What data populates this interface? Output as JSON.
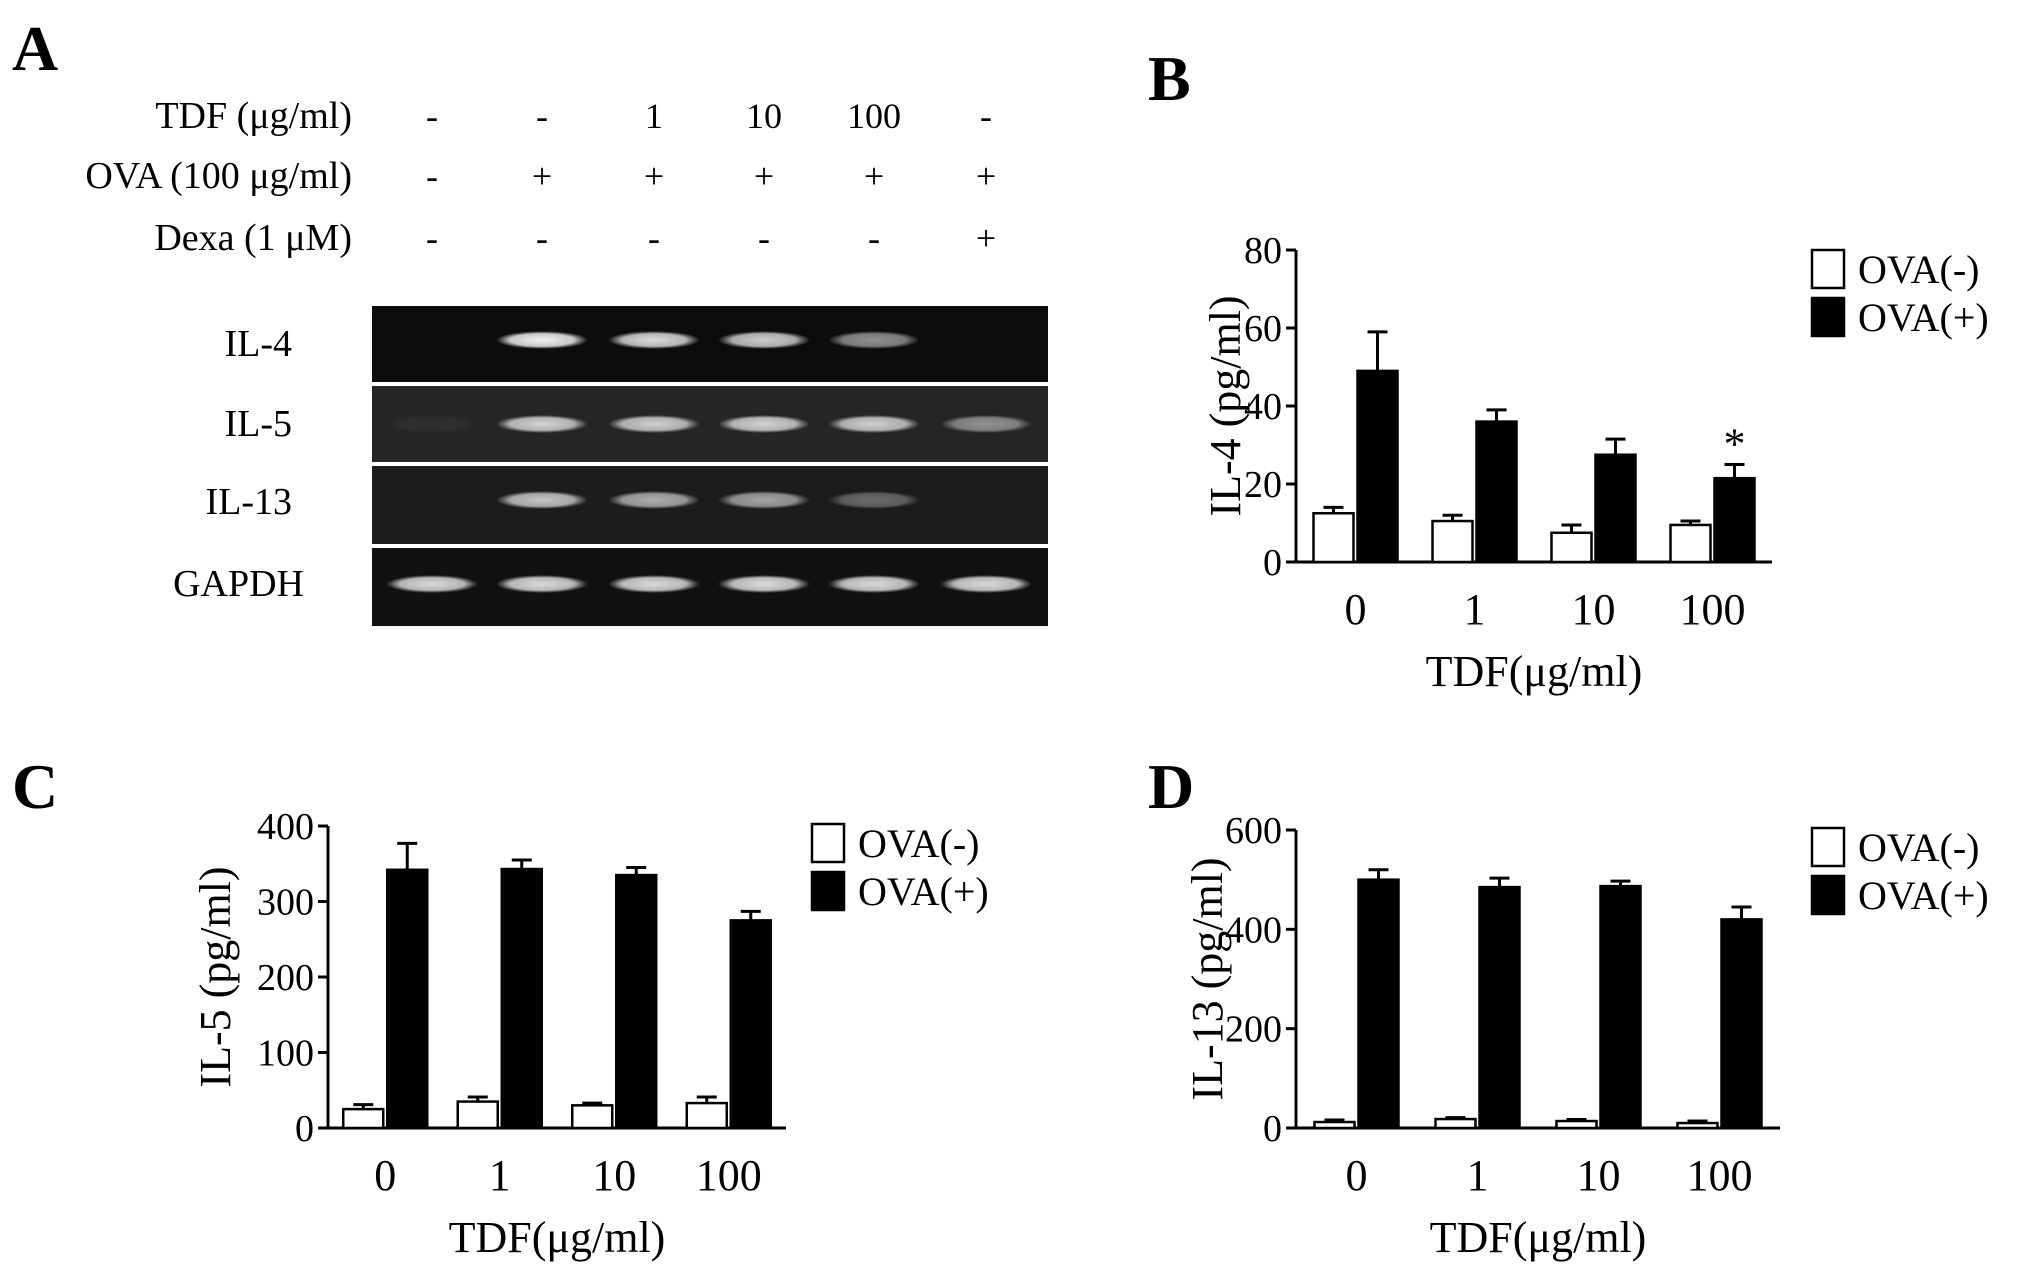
{
  "panel_a": {
    "letter": "A",
    "conditions": [
      {
        "label": "TDF (μg/ml)",
        "values": [
          "-",
          "-",
          "1",
          "10",
          "100",
          "-"
        ]
      },
      {
        "label": "OVA (100 μg/ml)",
        "values": [
          "-",
          "+",
          "+",
          "+",
          "+",
          "+"
        ]
      },
      {
        "label": "Dexa (1 μM)",
        "values": [
          "-",
          "-",
          "-",
          "-",
          "-",
          "+"
        ]
      }
    ],
    "gels": [
      {
        "label": "IL-4",
        "band_intensity": [
          0.0,
          0.95,
          0.85,
          0.8,
          0.55,
          0.0
        ]
      },
      {
        "label": "IL-5",
        "band_intensity": [
          0.05,
          0.8,
          0.78,
          0.8,
          0.78,
          0.5
        ]
      },
      {
        "label": "IL-13",
        "band_intensity": [
          0.0,
          0.75,
          0.65,
          0.6,
          0.35,
          0.0
        ]
      },
      {
        "label": "GAPDH",
        "band_intensity": [
          0.85,
          0.85,
          0.85,
          0.85,
          0.85,
          0.85
        ]
      }
    ]
  },
  "chart_data": [
    {
      "panel": "B",
      "type": "bar",
      "categories": [
        "0",
        "1",
        "10",
        "100"
      ],
      "xlabel": "TDF(μg/ml)",
      "ylabel": "IL-4 (pg/ml)",
      "ylim": [
        0,
        80
      ],
      "yticks": [
        "0",
        "20",
        "40",
        "60",
        "80"
      ],
      "legend_position": "right",
      "series": [
        {
          "name": "OVA(-)",
          "color": "#ffffff",
          "values": [
            12.5,
            10.5,
            7.5,
            9.5
          ],
          "errors": [
            1.5,
            1.5,
            2.0,
            1.0
          ]
        },
        {
          "name": "OVA(+)",
          "color": "#000000",
          "values": [
            49,
            36,
            27.5,
            21.5
          ],
          "errors": [
            10,
            3,
            4,
            3.5
          ]
        }
      ],
      "annotations": [
        {
          "text": "*",
          "category": "100",
          "series": "OVA(+)"
        }
      ]
    },
    {
      "panel": "C",
      "type": "bar",
      "categories": [
        "0",
        "1",
        "10",
        "100"
      ],
      "xlabel": "TDF(μg/ml)",
      "ylabel": "IL-5 (pg/ml)",
      "ylim": [
        0,
        400
      ],
      "yticks": [
        "0",
        "100",
        "200",
        "300",
        "400"
      ],
      "legend_position": "right",
      "series": [
        {
          "name": "OVA(-)",
          "color": "#ffffff",
          "values": [
            25,
            35,
            30,
            33
          ],
          "errors": [
            6,
            6,
            3,
            8
          ]
        },
        {
          "name": "OVA(+)",
          "color": "#000000",
          "values": [
            342,
            343,
            335,
            275
          ],
          "errors": [
            35,
            12,
            10,
            12
          ]
        }
      ],
      "annotations": []
    },
    {
      "panel": "D",
      "type": "bar",
      "categories": [
        "0",
        "1",
        "10",
        "100"
      ],
      "xlabel": "TDF(μg/ml)",
      "ylabel": "IL-13 (pg/ml)",
      "ylim": [
        0,
        600
      ],
      "yticks": [
        "0",
        "200",
        "400",
        "600"
      ],
      "legend_position": "right",
      "series": [
        {
          "name": "OVA(-)",
          "color": "#ffffff",
          "values": [
            12,
            18,
            14,
            10
          ],
          "errors": [
            4,
            3,
            3,
            4
          ]
        },
        {
          "name": "OVA(+)",
          "color": "#000000",
          "values": [
            500,
            485,
            487,
            420
          ],
          "errors": [
            20,
            18,
            10,
            25
          ]
        }
      ],
      "annotations": []
    }
  ]
}
